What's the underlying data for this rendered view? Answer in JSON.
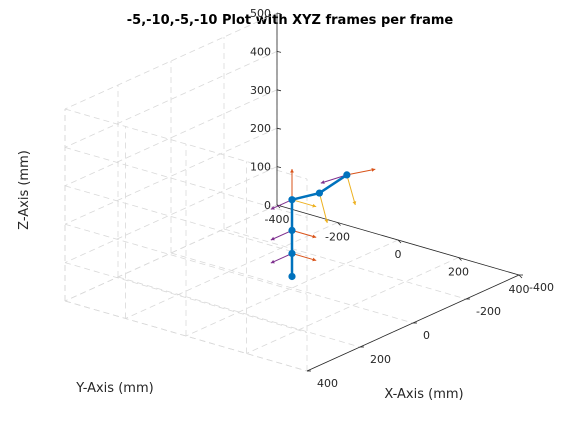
{
  "chart_data": {
    "type": "line",
    "title": "-5,-10,-5,-10 Plot with XYZ frames per frame",
    "xlabel": "X-Axis (mm)",
    "ylabel": "Y-Axis (mm)",
    "zlabel": "Z-Axis (mm)",
    "xlim": [
      -400,
      400
    ],
    "ylim": [
      -400,
      400
    ],
    "zlim": [
      0,
      500
    ],
    "xticks": [
      -400,
      -200,
      0,
      200,
      400
    ],
    "yticks": [
      -400,
      -200,
      0,
      200,
      400
    ],
    "zticks": [
      0,
      100,
      200,
      300,
      400,
      500
    ],
    "grid": true,
    "view": "3d",
    "colors": {
      "link": "#0072bd",
      "frame_x": "#d95319",
      "frame_y": "#7e2f8e",
      "frame_z": "#edb120"
    },
    "series": [
      {
        "x": [
          0,
          0,
          0,
          0,
          60,
          120
        ],
        "y": [
          0,
          0,
          0,
          0,
          -35,
          -70
        ],
        "z": [
          30,
          90,
          150,
          230,
          250,
          300
        ]
      }
    ],
    "frames_arrow_length": 80,
    "frames": [
      {
        "origin": [
          0,
          0,
          90
        ],
        "x": [
          1,
          0,
          0
        ],
        "y": [
          0,
          1,
          0
        ],
        "z": [
          0,
          0,
          0
        ]
      },
      {
        "origin": [
          0,
          0,
          150
        ],
        "x": [
          1,
          0,
          0
        ],
        "y": [
          0,
          1,
          0
        ],
        "z": [
          0,
          0,
          0
        ]
      },
      {
        "origin": [
          0,
          0,
          230
        ],
        "x": [
          0,
          0,
          1
        ],
        "y": [
          0,
          1,
          0
        ],
        "z": [
          1,
          0,
          0
        ]
      },
      {
        "origin": [
          60,
          -35,
          250
        ],
        "x": [
          0,
          0,
          0
        ],
        "y": [
          0,
          0,
          0
        ],
        "z": [
          0.5,
          0.2,
          -0.8
        ]
      },
      {
        "origin": [
          120,
          -70,
          300
        ],
        "x": [
          1,
          -0.2,
          0.35
        ],
        "y": [
          -0.2,
          1,
          0
        ],
        "z": [
          0.35,
          0,
          -0.9
        ]
      }
    ]
  }
}
